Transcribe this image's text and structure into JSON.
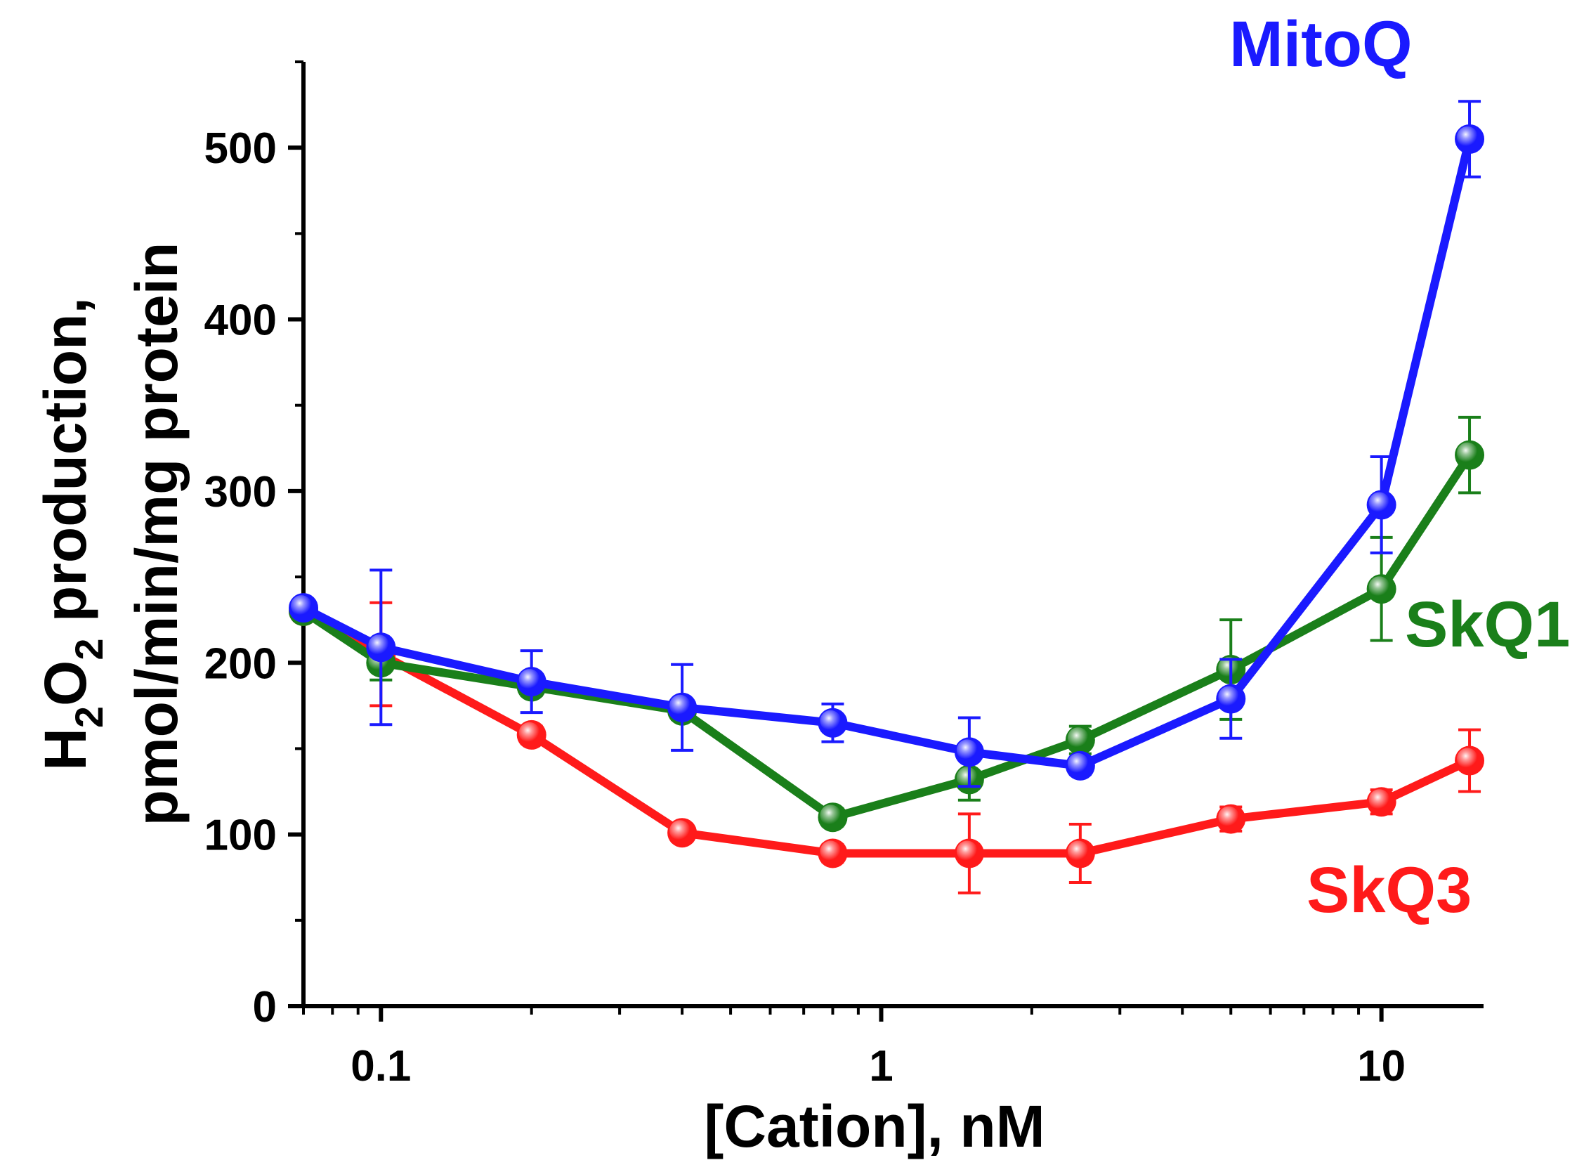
{
  "chart_data": {
    "type": "line",
    "title": "",
    "xlabel": "[Cation], nM",
    "ylabel_line1_main": "H",
    "ylabel_line1_sub1": "2",
    "ylabel_line1_mid": "O",
    "ylabel_line1_sub2": "2",
    "ylabel_line1_rest": " production,",
    "ylabel_line2": "pmol/min/mg protein",
    "xscale": "log",
    "xlim": [
      0.07,
      16
    ],
    "ylim": [
      0,
      550
    ],
    "x_tick_values": [
      0.1,
      1,
      10
    ],
    "x_tick_labels": [
      "0.1",
      "1",
      "10"
    ],
    "y_tick_values": [
      0,
      100,
      200,
      300,
      400,
      500
    ],
    "y_tick_labels": [
      "0",
      "100",
      "200",
      "300",
      "400",
      "500"
    ],
    "series": [
      {
        "name": "SkQ3",
        "color": "#ff1a1a",
        "x": [
          0.07,
          0.1,
          0.2,
          0.4,
          0.8,
          1.5,
          2.5,
          5,
          10,
          15
        ],
        "y": [
          230,
          205,
          158,
          101,
          89,
          89,
          89,
          109,
          119,
          143
        ],
        "err": [
          0,
          30,
          5,
          5,
          5,
          23,
          17,
          7,
          7,
          18
        ]
      },
      {
        "name": "SkQ1",
        "color": "#1a7f1a",
        "x": [
          0.07,
          0.1,
          0.2,
          0.4,
          0.8,
          1.5,
          2.5,
          5,
          10,
          15
        ],
        "y": [
          230,
          200,
          186,
          172,
          110,
          132,
          155,
          196,
          243,
          321
        ],
        "err": [
          0,
          10,
          5,
          5,
          5,
          12,
          8,
          29,
          30,
          22
        ]
      },
      {
        "name": "MitoQ",
        "color": "#1a1aff",
        "x": [
          0.07,
          0.1,
          0.2,
          0.4,
          0.8,
          1.5,
          2.5,
          5,
          10,
          15
        ],
        "y": [
          232,
          209,
          189,
          174,
          165,
          148,
          140,
          179,
          292,
          505
        ],
        "err": [
          0,
          45,
          18,
          25,
          11,
          20,
          5,
          23,
          28,
          22
        ]
      }
    ],
    "labels": {
      "mitoq": "MitoQ",
      "skq1": "SkQ1",
      "skq3": "SkQ3"
    }
  }
}
